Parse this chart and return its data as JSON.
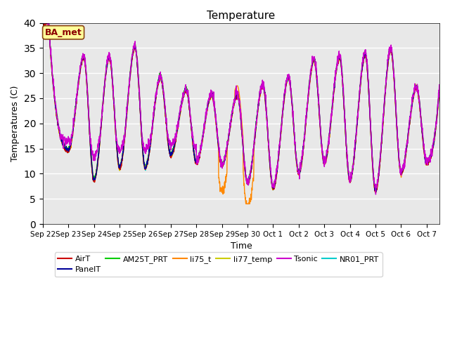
{
  "title": "Temperature",
  "xlabel": "Time",
  "ylabel": "Temperatures (C)",
  "ylim": [
    0,
    40
  ],
  "yticks": [
    0,
    5,
    10,
    15,
    20,
    25,
    30,
    35,
    40
  ],
  "annotation_text": "BA_met",
  "annotation_color": "#8B0000",
  "annotation_bg": "#FFFF99",
  "series_order": [
    "NR01_PRT",
    "AM25T_PRT",
    "li75_t",
    "li77_temp",
    "AirT",
    "PanelT",
    "Tsonic"
  ],
  "series": {
    "AirT": {
      "color": "#CC0000",
      "lw": 1.0
    },
    "PanelT": {
      "color": "#000099",
      "lw": 1.0
    },
    "AM25T_PRT": {
      "color": "#00CC00",
      "lw": 1.0
    },
    "li75_t": {
      "color": "#FF8800",
      "lw": 1.0
    },
    "li77_temp": {
      "color": "#CCCC00",
      "lw": 1.0
    },
    "Tsonic": {
      "color": "#CC00CC",
      "lw": 1.0
    },
    "NR01_PRT": {
      "color": "#00CCCC",
      "lw": 1.0
    }
  },
  "legend_order": [
    "AirT",
    "PanelT",
    "AM25T_PRT",
    "li75_t",
    "li77_temp",
    "Tsonic",
    "NR01_PRT"
  ],
  "x_tick_labels": [
    "Sep 22",
    "Sep 23",
    "Sep 24",
    "Sep 25",
    "Sep 26",
    "Sep 27",
    "Sep 28",
    "Sep 29",
    "Sep 30",
    "Oct 1",
    "Oct 2",
    "Oct 3",
    "Oct 4",
    "Oct 5",
    "Oct 6",
    "Oct 7"
  ],
  "background_color": "#E8E8E8",
  "fig_bg": "#FFFFFF",
  "n_days": 15.5,
  "peaks": [
    {
      "day": 0.6,
      "temp": 19.5
    },
    {
      "day": 1.0,
      "temp": 14.5
    },
    {
      "day": 1.6,
      "temp": 33.0
    },
    {
      "day": 2.0,
      "temp": 8.5
    },
    {
      "day": 2.6,
      "temp": 33.0
    },
    {
      "day": 3.0,
      "temp": 11.0
    },
    {
      "day": 3.6,
      "temp": 35.0
    },
    {
      "day": 4.0,
      "temp": 11.0
    },
    {
      "day": 4.6,
      "temp": 29.0
    },
    {
      "day": 5.0,
      "temp": 13.5
    },
    {
      "day": 5.6,
      "temp": 26.5
    },
    {
      "day": 6.0,
      "temp": 12.0
    },
    {
      "day": 6.6,
      "temp": 25.5
    },
    {
      "day": 7.0,
      "temp": 11.5
    },
    {
      "day": 7.6,
      "temp": 25.5
    },
    {
      "day": 8.0,
      "temp": 8.0
    },
    {
      "day": 8.6,
      "temp": 27.5
    },
    {
      "day": 9.0,
      "temp": 7.0
    },
    {
      "day": 9.6,
      "temp": 29.0
    },
    {
      "day": 10.0,
      "temp": 10.0
    },
    {
      "day": 10.6,
      "temp": 32.5
    },
    {
      "day": 11.0,
      "temp": 12.0
    },
    {
      "day": 11.6,
      "temp": 33.0
    },
    {
      "day": 12.0,
      "temp": 8.5
    },
    {
      "day": 12.6,
      "temp": 33.5
    },
    {
      "day": 13.0,
      "temp": 6.5
    },
    {
      "day": 13.6,
      "temp": 34.5
    },
    {
      "day": 14.0,
      "temp": 10.0
    },
    {
      "day": 14.6,
      "temp": 27.0
    },
    {
      "day": 15.0,
      "temp": 12.0
    },
    {
      "day": 15.5,
      "temp": 27.0
    }
  ]
}
